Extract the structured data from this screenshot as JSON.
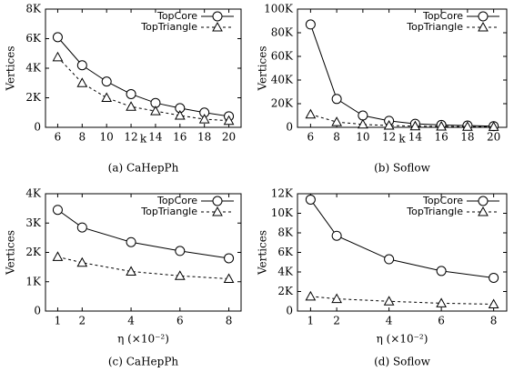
{
  "chart_data": [
    {
      "type": "line",
      "caption": "(a) CaHepPh",
      "xlabel": "k",
      "ylabel": "Vertices",
      "x": [
        6,
        8,
        10,
        12,
        14,
        16,
        18,
        20
      ],
      "xlim": [
        5,
        21
      ],
      "xticks": [
        6,
        8,
        10,
        12,
        14,
        16,
        18,
        20
      ],
      "ylim": [
        0,
        8000
      ],
      "yticks": [
        0,
        {
          "value": 2000,
          "label": "2K"
        },
        {
          "value": 4000,
          "label": "4K"
        },
        {
          "value": 6000,
          "label": "6K"
        },
        {
          "value": 8000,
          "label": "8K"
        }
      ],
      "legend": "upper right",
      "series": [
        {
          "name": "TopCore",
          "color": "#000000",
          "line_style": "solid",
          "marker": "circle",
          "values": [
            6100,
            4200,
            3100,
            2250,
            1650,
            1300,
            1000,
            750
          ]
        },
        {
          "name": "TopTriangle",
          "color": "#000000",
          "line_style": "dashed",
          "marker": "triangle",
          "values": [
            4750,
            3000,
            2000,
            1400,
            1100,
            800,
            550,
            450
          ]
        }
      ]
    },
    {
      "type": "line",
      "caption": "(b) Soflow",
      "xlabel": "k",
      "ylabel": "Vertices",
      "x": [
        6,
        8,
        10,
        12,
        14,
        16,
        18,
        20
      ],
      "xlim": [
        5,
        21
      ],
      "xticks": [
        6,
        8,
        10,
        12,
        14,
        16,
        18,
        20
      ],
      "ylim": [
        0,
        100000
      ],
      "yticks": [
        0,
        {
          "value": 20000,
          "label": "20K"
        },
        {
          "value": 40000,
          "label": "40K"
        },
        {
          "value": 60000,
          "label": "60K"
        },
        {
          "value": 80000,
          "label": "80K"
        },
        {
          "value": 100000,
          "label": "100K"
        }
      ],
      "legend": "upper right",
      "series": [
        {
          "name": "TopCore",
          "color": "#000000",
          "line_style": "solid",
          "marker": "circle",
          "values": [
            87000,
            24000,
            10000,
            5500,
            3000,
            2000,
            1500,
            1000
          ]
        },
        {
          "name": "TopTriangle",
          "color": "#000000",
          "line_style": "dashed",
          "marker": "triangle",
          "values": [
            11000,
            4500,
            2500,
            1500,
            1000,
            800,
            600,
            500
          ]
        }
      ]
    },
    {
      "type": "line",
      "caption": "(c) CaHepPh",
      "xlabel": "η (×10⁻²)",
      "ylabel": "Vertices",
      "x": [
        1,
        2,
        4,
        6,
        8
      ],
      "xlim": [
        0.5,
        8.5
      ],
      "xticks": [
        1,
        2,
        4,
        6,
        8
      ],
      "ylim": [
        0,
        4000
      ],
      "yticks": [
        0,
        {
          "value": 1000,
          "label": "1K"
        },
        {
          "value": 2000,
          "label": "2K"
        },
        {
          "value": 3000,
          "label": "3K"
        },
        {
          "value": 4000,
          "label": "4K"
        }
      ],
      "legend": "upper right",
      "series": [
        {
          "name": "TopCore",
          "color": "#000000",
          "line_style": "solid",
          "marker": "circle",
          "values": [
            3450,
            2850,
            2350,
            2050,
            1800
          ]
        },
        {
          "name": "TopTriangle",
          "color": "#000000",
          "line_style": "dashed",
          "marker": "triangle",
          "values": [
            1850,
            1650,
            1350,
            1200,
            1100
          ]
        }
      ]
    },
    {
      "type": "line",
      "caption": "(d) Soflow",
      "xlabel": "η (×10⁻²)",
      "ylabel": "Vertices",
      "x": [
        1,
        2,
        4,
        6,
        8
      ],
      "xlim": [
        0.5,
        8.5
      ],
      "xticks": [
        1,
        2,
        4,
        6,
        8
      ],
      "ylim": [
        0,
        12000
      ],
      "yticks": [
        0,
        {
          "value": 2000,
          "label": "2K"
        },
        {
          "value": 4000,
          "label": "4K"
        },
        {
          "value": 6000,
          "label": "6K"
        },
        {
          "value": 8000,
          "label": "8K"
        },
        {
          "value": 10000,
          "label": "10K"
        },
        {
          "value": 12000,
          "label": "12K"
        }
      ],
      "legend": "upper right",
      "series": [
        {
          "name": "TopCore",
          "color": "#000000",
          "line_style": "solid",
          "marker": "circle",
          "values": [
            11400,
            7700,
            5300,
            4100,
            3400
          ]
        },
        {
          "name": "TopTriangle",
          "color": "#000000",
          "line_style": "dashed",
          "marker": "triangle",
          "values": [
            1500,
            1250,
            1000,
            800,
            700
          ]
        }
      ]
    }
  ]
}
